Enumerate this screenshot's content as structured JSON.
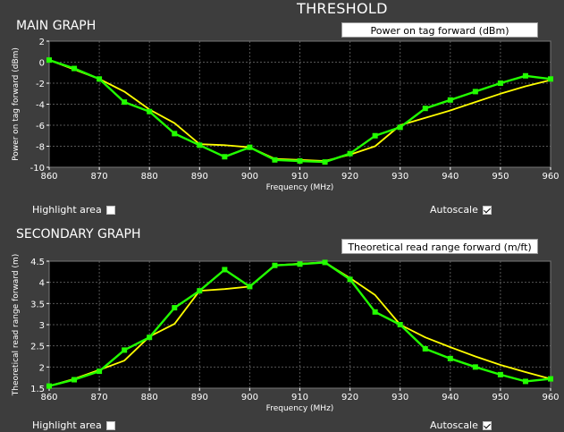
{
  "header": {
    "title": "THRESHOLD"
  },
  "main": {
    "section_title": "MAIN GRAPH",
    "dropdown_value": "Power on tag forward (dBm)",
    "highlight_label": "Highlight area",
    "highlight_checked": false,
    "autoscale_label": "Autoscale",
    "autoscale_checked": true
  },
  "secondary": {
    "section_title": "SECONDARY GRAPH",
    "dropdown_value": "Theoretical read range forward (m/ft)",
    "highlight_label": "Highlight area",
    "highlight_checked": false,
    "autoscale_label": "Autoscale",
    "autoscale_checked": true
  },
  "colors": {
    "background": "#3d3d3d",
    "plot": "#000000",
    "measured": "#22ff00",
    "theoretical": "#ffff00",
    "grid": "#555555"
  },
  "chart_data": [
    {
      "type": "line",
      "title": "",
      "xlabel": "Frequency (MHz)",
      "ylabel": "Power on tag forward (dBm)",
      "xlim": [
        860,
        960
      ],
      "ylim": [
        -10,
        2
      ],
      "xticks": [
        860,
        870,
        880,
        890,
        900,
        910,
        920,
        930,
        940,
        950,
        960
      ],
      "yticks": [
        2,
        0,
        -2,
        -4,
        -6,
        -8,
        -10
      ],
      "grid": true,
      "series": [
        {
          "color": "#22ff00",
          "markers": true,
          "x": [
            860,
            865,
            870,
            875,
            880,
            885,
            890,
            895,
            900,
            905,
            910,
            915,
            920,
            925,
            930,
            935,
            940,
            945,
            950,
            955,
            960
          ],
          "y": [
            0.2,
            -0.6,
            -1.6,
            -3.8,
            -4.7,
            -6.8,
            -7.9,
            -9.0,
            -8.1,
            -9.3,
            -9.4,
            -9.5,
            -8.7,
            -7.0,
            -6.2,
            -4.4,
            -3.6,
            -2.8,
            -2.0,
            -1.3,
            -1.6
          ]
        },
        {
          "color": "#ffff00",
          "markers": false,
          "x": [
            860,
            865,
            870,
            875,
            880,
            885,
            890,
            895,
            900,
            905,
            910,
            915,
            920,
            925,
            930,
            935,
            940,
            945,
            950,
            955,
            960
          ],
          "y": [
            0.2,
            -0.7,
            -1.6,
            -2.8,
            -4.5,
            -5.8,
            -7.8,
            -7.9,
            -8.1,
            -9.2,
            -9.3,
            -9.4,
            -8.8,
            -8.0,
            -6.0,
            -5.3,
            -4.6,
            -3.8,
            -3.0,
            -2.3,
            -1.7
          ]
        }
      ]
    },
    {
      "type": "line",
      "title": "",
      "xlabel": "Frequency (MHz)",
      "ylabel": "Theoretical read range forward (m)",
      "xlim": [
        860,
        960
      ],
      "ylim": [
        1.5,
        4.5
      ],
      "xticks": [
        860,
        870,
        880,
        890,
        900,
        910,
        920,
        930,
        940,
        950,
        960
      ],
      "yticks": [
        "4.5",
        "4",
        "3.5",
        "3",
        "2.5",
        "2",
        "1.5"
      ],
      "grid": true,
      "series": [
        {
          "color": "#22ff00",
          "markers": true,
          "x": [
            860,
            865,
            870,
            875,
            880,
            885,
            890,
            895,
            900,
            905,
            910,
            915,
            920,
            925,
            930,
            935,
            940,
            945,
            950,
            955,
            960
          ],
          "y": [
            1.55,
            1.7,
            1.9,
            2.4,
            2.7,
            3.4,
            3.8,
            4.3,
            3.9,
            4.4,
            4.43,
            4.47,
            4.07,
            3.3,
            3.0,
            2.43,
            2.2,
            2.0,
            1.82,
            1.66,
            1.72
          ]
        },
        {
          "color": "#ffff00",
          "markers": false,
          "x": [
            860,
            865,
            870,
            875,
            880,
            885,
            890,
            895,
            900,
            905,
            910,
            915,
            920,
            925,
            930,
            935,
            940,
            945,
            950,
            955,
            960
          ],
          "y": [
            1.55,
            1.72,
            1.93,
            2.15,
            2.72,
            3.02,
            3.8,
            3.84,
            3.9,
            4.4,
            4.44,
            4.47,
            4.1,
            3.7,
            3.0,
            2.7,
            2.47,
            2.25,
            2.05,
            1.88,
            1.72
          ]
        }
      ]
    }
  ]
}
